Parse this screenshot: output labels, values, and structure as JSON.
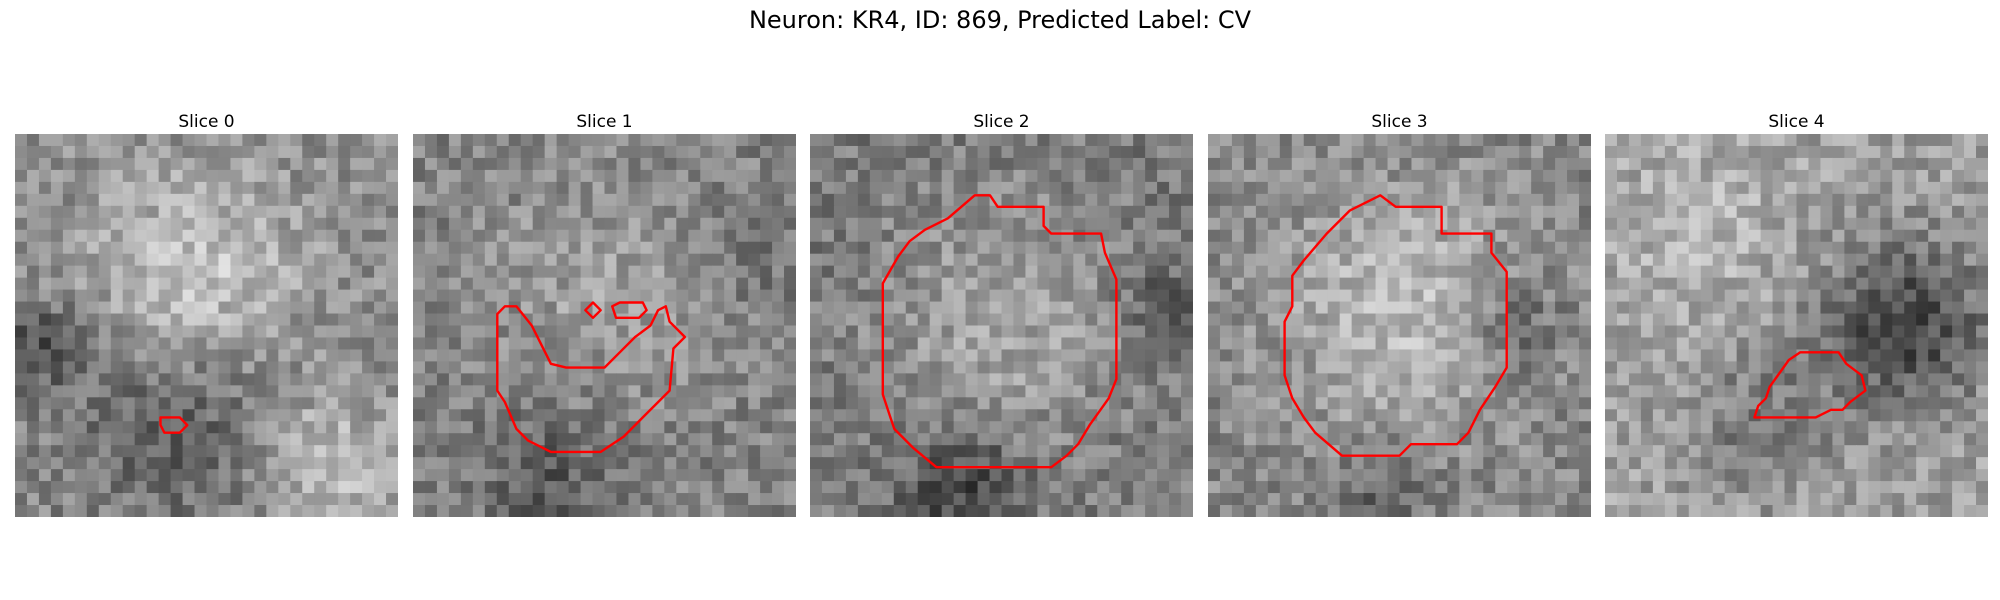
{
  "figure": {
    "title": "Neuron: KR4, ID: 869, Predicted Label: CV"
  },
  "contour_color": "#ff0000",
  "panels": [
    {
      "title": "Slice 0",
      "description": "Grayscale microscopy patch; a bright rounded cell body in the upper center, dark crescent below it, bright region bottom-right. A tiny red contour near the lower-left.",
      "contour_points": [
        [
          0.38,
          0.74
        ],
        [
          0.43,
          0.74
        ],
        [
          0.45,
          0.76
        ],
        [
          0.43,
          0.78
        ],
        [
          0.39,
          0.78
        ],
        [
          0.38,
          0.76
        ]
      ]
    },
    {
      "title": "Slice 1",
      "description": "Noisy grayscale patch with a central medium-gray region; a red irregular contour outlining a lower-center area plus a tiny diamond and small blob at top.",
      "contour_points": [
        [
          0.24,
          0.45
        ],
        [
          0.27,
          0.45
        ],
        [
          0.31,
          0.5
        ],
        [
          0.33,
          0.54
        ],
        [
          0.36,
          0.6
        ],
        [
          0.4,
          0.61
        ],
        [
          0.5,
          0.61
        ],
        [
          0.54,
          0.57
        ],
        [
          0.58,
          0.53
        ],
        [
          0.62,
          0.5
        ],
        [
          0.64,
          0.46
        ],
        [
          0.66,
          0.45
        ],
        [
          0.67,
          0.49
        ],
        [
          0.71,
          0.53
        ],
        [
          0.68,
          0.56
        ],
        [
          0.67,
          0.67
        ],
        [
          0.6,
          0.74
        ],
        [
          0.55,
          0.79
        ],
        [
          0.49,
          0.83
        ],
        [
          0.36,
          0.83
        ],
        [
          0.3,
          0.8
        ],
        [
          0.27,
          0.77
        ],
        [
          0.24,
          0.7
        ],
        [
          0.22,
          0.67
        ],
        [
          0.22,
          0.47
        ]
      ],
      "extra_contours": [
        [
          [
            0.45,
            0.46
          ],
          [
            0.47,
            0.44
          ],
          [
            0.49,
            0.46
          ],
          [
            0.47,
            0.48
          ]
        ],
        [
          [
            0.52,
            0.45
          ],
          [
            0.54,
            0.44
          ],
          [
            0.6,
            0.44
          ],
          [
            0.61,
            0.46
          ],
          [
            0.59,
            0.48
          ],
          [
            0.53,
            0.48
          ]
        ]
      ]
    },
    {
      "title": "Slice 2",
      "description": "Grayscale patch with a large bright round cell body in the center outlined by a red polygon contour.",
      "contour_points": [
        [
          0.36,
          0.22
        ],
        [
          0.43,
          0.16
        ],
        [
          0.47,
          0.16
        ],
        [
          0.49,
          0.19
        ],
        [
          0.61,
          0.19
        ],
        [
          0.61,
          0.24
        ],
        [
          0.63,
          0.26
        ],
        [
          0.76,
          0.26
        ],
        [
          0.77,
          0.31
        ],
        [
          0.8,
          0.38
        ],
        [
          0.8,
          0.64
        ],
        [
          0.78,
          0.69
        ],
        [
          0.73,
          0.76
        ],
        [
          0.7,
          0.81
        ],
        [
          0.67,
          0.84
        ],
        [
          0.63,
          0.87
        ],
        [
          0.33,
          0.87
        ],
        [
          0.27,
          0.82
        ],
        [
          0.22,
          0.77
        ],
        [
          0.21,
          0.74
        ],
        [
          0.19,
          0.68
        ],
        [
          0.19,
          0.39
        ],
        [
          0.23,
          0.32
        ],
        [
          0.26,
          0.28
        ],
        [
          0.3,
          0.25
        ]
      ]
    },
    {
      "title": "Slice 3",
      "description": "Grayscale patch with a bright rounded cell body centered, outlined by a red polygon contour.",
      "contour_points": [
        [
          0.37,
          0.2
        ],
        [
          0.45,
          0.16
        ],
        [
          0.49,
          0.19
        ],
        [
          0.61,
          0.19
        ],
        [
          0.61,
          0.26
        ],
        [
          0.74,
          0.26
        ],
        [
          0.74,
          0.31
        ],
        [
          0.78,
          0.36
        ],
        [
          0.78,
          0.61
        ],
        [
          0.75,
          0.66
        ],
        [
          0.71,
          0.72
        ],
        [
          0.68,
          0.78
        ],
        [
          0.65,
          0.81
        ],
        [
          0.53,
          0.81
        ],
        [
          0.5,
          0.84
        ],
        [
          0.35,
          0.84
        ],
        [
          0.28,
          0.78
        ],
        [
          0.25,
          0.74
        ],
        [
          0.22,
          0.69
        ],
        [
          0.2,
          0.63
        ],
        [
          0.2,
          0.49
        ],
        [
          0.22,
          0.45
        ],
        [
          0.22,
          0.37
        ],
        [
          0.25,
          0.33
        ],
        [
          0.31,
          0.26
        ]
      ]
    },
    {
      "title": "Slice 4",
      "description": "Grayscale patch with a dark region on the right and a small red contour outlining a lower-center area.",
      "contour_points": [
        [
          0.48,
          0.59
        ],
        [
          0.51,
          0.57
        ],
        [
          0.61,
          0.57
        ],
        [
          0.63,
          0.6
        ],
        [
          0.67,
          0.63
        ],
        [
          0.68,
          0.67
        ],
        [
          0.64,
          0.7
        ],
        [
          0.62,
          0.72
        ],
        [
          0.59,
          0.72
        ],
        [
          0.55,
          0.74
        ],
        [
          0.39,
          0.74
        ],
        [
          0.4,
          0.71
        ],
        [
          0.42,
          0.69
        ],
        [
          0.43,
          0.66
        ]
      ]
    }
  ]
}
